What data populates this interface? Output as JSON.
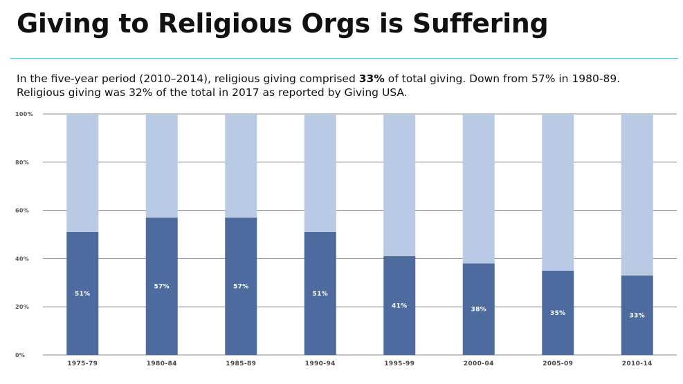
{
  "header": {
    "title": "Giving to Religious Orgs is Suffering"
  },
  "description": {
    "line1_pre": "In the five-year period (2010–2014), religious giving comprised ",
    "line1_bold": "33%",
    "line1_post": " of total giving. Down from 57% in 1980-89.",
    "line2": "Religious giving was 32% of the total in 2017 as reported by Giving USA."
  },
  "colors": {
    "accent_rule": "#63c7d4",
    "series_religious": "#4d6b9e",
    "series_remainder": "#b9cae4",
    "gridline": "#8a8a8a"
  },
  "chart_data": {
    "type": "bar",
    "stacked": true,
    "categories": [
      "1975-79",
      "1980-84",
      "1985-89",
      "1990-94",
      "1995-99",
      "2000-04",
      "2005-09",
      "2010-14"
    ],
    "series": [
      {
        "values": [
          51,
          57,
          57,
          51,
          41,
          38,
          35,
          33
        ]
      },
      {
        "values": [
          49,
          43,
          43,
          49,
          59,
          62,
          65,
          67
        ]
      }
    ],
    "data_labels": [
      "51%",
      "57%",
      "57%",
      "51%",
      "41%",
      "38%",
      "35%",
      "33%"
    ],
    "y_ticks": [
      "0%",
      "20%",
      "40%",
      "60%",
      "80%",
      "100%"
    ],
    "ylim": [
      0,
      100
    ],
    "grid": true,
    "legend": "none"
  }
}
